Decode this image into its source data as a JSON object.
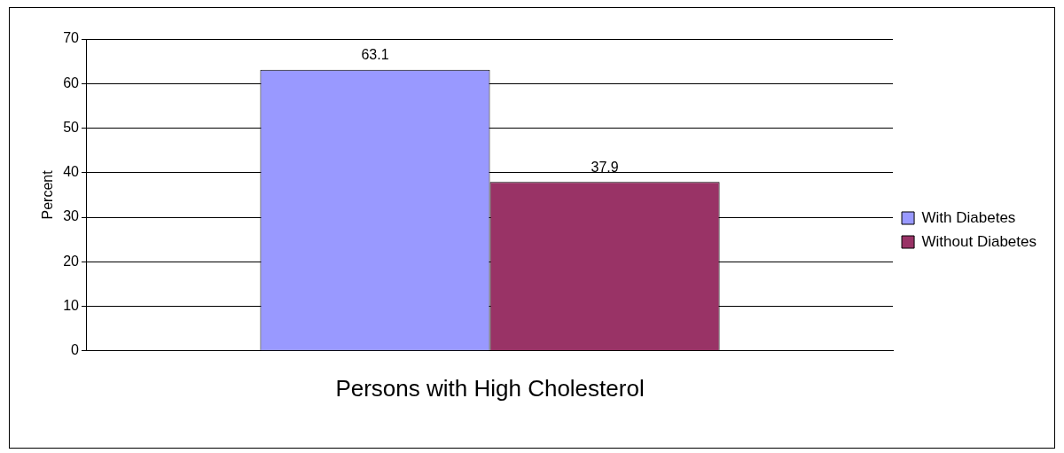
{
  "chart_data": {
    "type": "bar",
    "ylabel": "Percent",
    "categories": [
      "Persons with High Cholesterol"
    ],
    "series": [
      {
        "name": "With Diabetes",
        "color": "#9999ff",
        "values": [
          63.1
        ]
      },
      {
        "name": "Without Diabetes",
        "color": "#993366",
        "values": [
          37.9
        ]
      }
    ],
    "ylim": [
      0,
      70
    ],
    "yticks": [
      0,
      10,
      20,
      30,
      40,
      50,
      60,
      70
    ],
    "grid": "y",
    "legend": "right",
    "data_labels": true
  }
}
